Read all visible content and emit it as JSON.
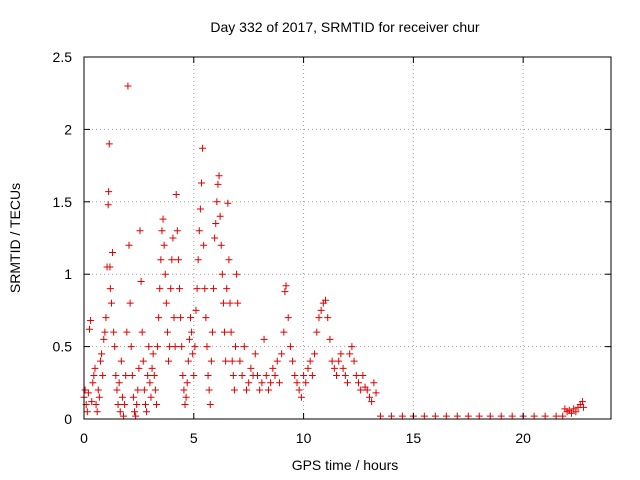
{
  "chart_data": {
    "type": "scatter",
    "title": "Day 332 of 2017, SRMTID for receiver chur",
    "xlabel": "GPS time / hours",
    "ylabel": "SRMTID / TECUs",
    "xlim": [
      0,
      24
    ],
    "ylim": [
      0,
      2.5
    ],
    "xticks": [
      0,
      5,
      10,
      15,
      20
    ],
    "xtick_labels": [
      "0",
      "5",
      "10",
      "15",
      "20"
    ],
    "yticks": [
      0,
      0.5,
      1,
      1.5,
      2,
      2.5
    ],
    "ytick_labels": [
      "0",
      "0.5",
      "1",
      "1.5",
      "2",
      "2.5"
    ],
    "grid": true,
    "marker": "plus",
    "color": "#e00000",
    "series": [
      {
        "name": "SRMTID",
        "points": [
          [
            0.0,
            0.15
          ],
          [
            0.05,
            0.2
          ],
          [
            0.1,
            0.1
          ],
          [
            0.15,
            0.05
          ],
          [
            0.2,
            0.18
          ],
          [
            0.25,
            0.62
          ],
          [
            0.3,
            0.68
          ],
          [
            0.35,
            0.12
          ],
          [
            0.4,
            0.25
          ],
          [
            0.45,
            0.3
          ],
          [
            0.5,
            0.35
          ],
          [
            0.55,
            0.1
          ],
          [
            0.6,
            0.05
          ],
          [
            0.65,
            0.2
          ],
          [
            0.7,
            0.15
          ],
          [
            0.75,
            0.4
          ],
          [
            0.8,
            0.45
          ],
          [
            0.85,
            0.3
          ],
          [
            0.9,
            0.55
          ],
          [
            0.95,
            0.6
          ],
          [
            1.0,
            0.7
          ],
          [
            1.05,
            1.05
          ],
          [
            1.1,
            1.48
          ],
          [
            1.12,
            1.57
          ],
          [
            1.15,
            1.9
          ],
          [
            1.18,
            1.05
          ],
          [
            1.2,
            0.9
          ],
          [
            1.25,
            0.8
          ],
          [
            1.3,
            1.15
          ],
          [
            1.35,
            0.6
          ],
          [
            1.4,
            0.5
          ],
          [
            1.45,
            0.3
          ],
          [
            1.5,
            0.2
          ],
          [
            1.55,
            0.1
          ],
          [
            1.6,
            0.25
          ],
          [
            1.65,
            0.05
          ],
          [
            1.7,
            0.4
          ],
          [
            1.75,
            0.15
          ],
          [
            1.8,
            0.02
          ],
          [
            1.85,
            0.1
          ],
          [
            1.9,
            0.3
          ],
          [
            1.95,
            0.6
          ],
          [
            2.0,
            2.3
          ],
          [
            2.05,
            1.2
          ],
          [
            2.1,
            0.8
          ],
          [
            2.15,
            0.5
          ],
          [
            2.2,
            0.3
          ],
          [
            2.25,
            0.15
          ],
          [
            2.3,
            0.05
          ],
          [
            2.35,
            0.02
          ],
          [
            2.4,
            0.1
          ],
          [
            2.45,
            0.2
          ],
          [
            2.5,
            0.35
          ],
          [
            2.55,
            1.3
          ],
          [
            2.6,
            0.95
          ],
          [
            2.65,
            0.6
          ],
          [
            2.7,
            0.4
          ],
          [
            2.75,
            0.2
          ],
          [
            2.8,
            0.1
          ],
          [
            2.85,
            0.05
          ],
          [
            2.9,
            0.3
          ],
          [
            2.95,
            0.5
          ],
          [
            3.0,
            0.25
          ],
          [
            3.05,
            0.15
          ],
          [
            3.1,
            0.35
          ],
          [
            3.15,
            0.45
          ],
          [
            3.2,
            0.3
          ],
          [
            3.25,
            0.2
          ],
          [
            3.3,
            0.1
          ],
          [
            3.35,
            0.5
          ],
          [
            3.4,
            0.7
          ],
          [
            3.45,
            0.9
          ],
          [
            3.5,
            1.1
          ],
          [
            3.55,
            1.3
          ],
          [
            3.6,
            1.38
          ],
          [
            3.65,
            1.2
          ],
          [
            3.7,
            1.0
          ],
          [
            3.75,
            0.8
          ],
          [
            3.8,
            0.6
          ],
          [
            3.85,
            0.4
          ],
          [
            3.9,
            0.5
          ],
          [
            3.95,
            0.9
          ],
          [
            4.0,
            1.1
          ],
          [
            4.05,
            1.25
          ],
          [
            4.1,
            0.7
          ],
          [
            4.15,
            0.5
          ],
          [
            4.2,
            1.55
          ],
          [
            4.25,
            1.3
          ],
          [
            4.3,
            1.1
          ],
          [
            4.35,
            0.9
          ],
          [
            4.4,
            0.7
          ],
          [
            4.45,
            0.5
          ],
          [
            4.5,
            0.3
          ],
          [
            4.55,
            0.2
          ],
          [
            4.6,
            0.1
          ],
          [
            4.65,
            0.15
          ],
          [
            4.7,
            0.25
          ],
          [
            4.75,
            0.4
          ],
          [
            4.8,
            0.55
          ],
          [
            4.85,
            0.7
          ],
          [
            4.9,
            0.6
          ],
          [
            4.95,
            0.45
          ],
          [
            5.0,
            0.3
          ],
          [
            5.05,
            0.5
          ],
          [
            5.1,
            0.75
          ],
          [
            5.15,
            0.9
          ],
          [
            5.2,
            1.1
          ],
          [
            5.25,
            1.3
          ],
          [
            5.3,
            1.45
          ],
          [
            5.35,
            1.63
          ],
          [
            5.4,
            1.87
          ],
          [
            5.45,
            1.2
          ],
          [
            5.5,
            0.9
          ],
          [
            5.55,
            0.7
          ],
          [
            5.6,
            0.5
          ],
          [
            5.65,
            0.3
          ],
          [
            5.7,
            0.2
          ],
          [
            5.75,
            0.1
          ],
          [
            5.8,
            0.4
          ],
          [
            5.85,
            0.6
          ],
          [
            5.9,
            0.9
          ],
          [
            5.95,
            1.25
          ],
          [
            6.0,
            1.35
          ],
          [
            6.05,
            1.5
          ],
          [
            6.1,
            1.62
          ],
          [
            6.15,
            1.68
          ],
          [
            6.2,
            1.4
          ],
          [
            6.25,
            1.2
          ],
          [
            6.3,
            1.0
          ],
          [
            6.35,
            0.8
          ],
          [
            6.4,
            0.6
          ],
          [
            6.45,
            0.4
          ],
          [
            6.5,
            0.9
          ],
          [
            6.55,
            1.49
          ],
          [
            6.6,
            1.1
          ],
          [
            6.65,
            0.8
          ],
          [
            6.7,
            0.6
          ],
          [
            6.75,
            0.4
          ],
          [
            6.8,
            0.3
          ],
          [
            6.85,
            0.2
          ],
          [
            6.9,
            0.5
          ],
          [
            6.95,
            1.0
          ],
          [
            7.0,
            0.8
          ],
          [
            7.1,
            0.4
          ],
          [
            7.2,
            0.3
          ],
          [
            7.3,
            0.5
          ],
          [
            7.4,
            0.2
          ],
          [
            7.5,
            0.25
          ],
          [
            7.6,
            0.35
          ],
          [
            7.7,
            0.3
          ],
          [
            7.8,
            0.45
          ],
          [
            7.9,
            0.3
          ],
          [
            8.0,
            0.2
          ],
          [
            8.1,
            0.25
          ],
          [
            8.2,
            0.55
          ],
          [
            8.3,
            0.3
          ],
          [
            8.4,
            0.2
          ],
          [
            8.5,
            0.25
          ],
          [
            8.6,
            0.35
          ],
          [
            8.7,
            0.3
          ],
          [
            8.8,
            0.4
          ],
          [
            8.9,
            0.25
          ],
          [
            9.0,
            0.45
          ],
          [
            9.1,
            0.6
          ],
          [
            9.15,
            0.88
          ],
          [
            9.2,
            0.92
          ],
          [
            9.3,
            0.7
          ],
          [
            9.4,
            0.5
          ],
          [
            9.5,
            0.4
          ],
          [
            9.6,
            0.3
          ],
          [
            9.7,
            0.25
          ],
          [
            9.8,
            0.2
          ],
          [
            9.9,
            0.15
          ],
          [
            10.0,
            0.3
          ],
          [
            10.1,
            0.25
          ],
          [
            10.2,
            0.35
          ],
          [
            10.3,
            0.4
          ],
          [
            10.4,
            0.3
          ],
          [
            10.5,
            0.45
          ],
          [
            10.6,
            0.6
          ],
          [
            10.7,
            0.7
          ],
          [
            10.8,
            0.75
          ],
          [
            10.9,
            0.8
          ],
          [
            11.0,
            0.82
          ],
          [
            11.1,
            0.7
          ],
          [
            11.2,
            0.55
          ],
          [
            11.3,
            0.4
          ],
          [
            11.4,
            0.35
          ],
          [
            11.5,
            0.3
          ],
          [
            11.6,
            0.4
          ],
          [
            11.7,
            0.45
          ],
          [
            11.8,
            0.35
          ],
          [
            11.9,
            0.3
          ],
          [
            12.0,
            0.25
          ],
          [
            12.1,
            0.45
          ],
          [
            12.2,
            0.5
          ],
          [
            12.3,
            0.4
          ],
          [
            12.4,
            0.3
          ],
          [
            12.5,
            0.25
          ],
          [
            12.6,
            0.2
          ],
          [
            12.7,
            0.3
          ],
          [
            12.8,
            0.22
          ],
          [
            12.9,
            0.2
          ],
          [
            13.0,
            0.15
          ],
          [
            13.1,
            0.12
          ],
          [
            13.2,
            0.25
          ],
          [
            13.3,
            0.18
          ],
          [
            13.5,
            0.02
          ],
          [
            14.0,
            0.02
          ],
          [
            14.5,
            0.02
          ],
          [
            15.0,
            0.02
          ],
          [
            15.5,
            0.02
          ],
          [
            16.0,
            0.02
          ],
          [
            16.5,
            0.02
          ],
          [
            17.0,
            0.02
          ],
          [
            17.5,
            0.02
          ],
          [
            18.0,
            0.02
          ],
          [
            18.5,
            0.02
          ],
          [
            19.0,
            0.02
          ],
          [
            19.5,
            0.02
          ],
          [
            20.0,
            0.02
          ],
          [
            20.5,
            0.02
          ],
          [
            21.0,
            0.02
          ],
          [
            21.5,
            0.02
          ],
          [
            21.8,
            0.02
          ],
          [
            21.9,
            0.07
          ],
          [
            22.0,
            0.05
          ],
          [
            22.1,
            0.06
          ],
          [
            22.2,
            0.04
          ],
          [
            22.3,
            0.07
          ],
          [
            22.4,
            0.05
          ],
          [
            22.5,
            0.08
          ],
          [
            22.6,
            0.1
          ],
          [
            22.7,
            0.12
          ],
          [
            22.75,
            0.08
          ]
        ]
      }
    ]
  }
}
